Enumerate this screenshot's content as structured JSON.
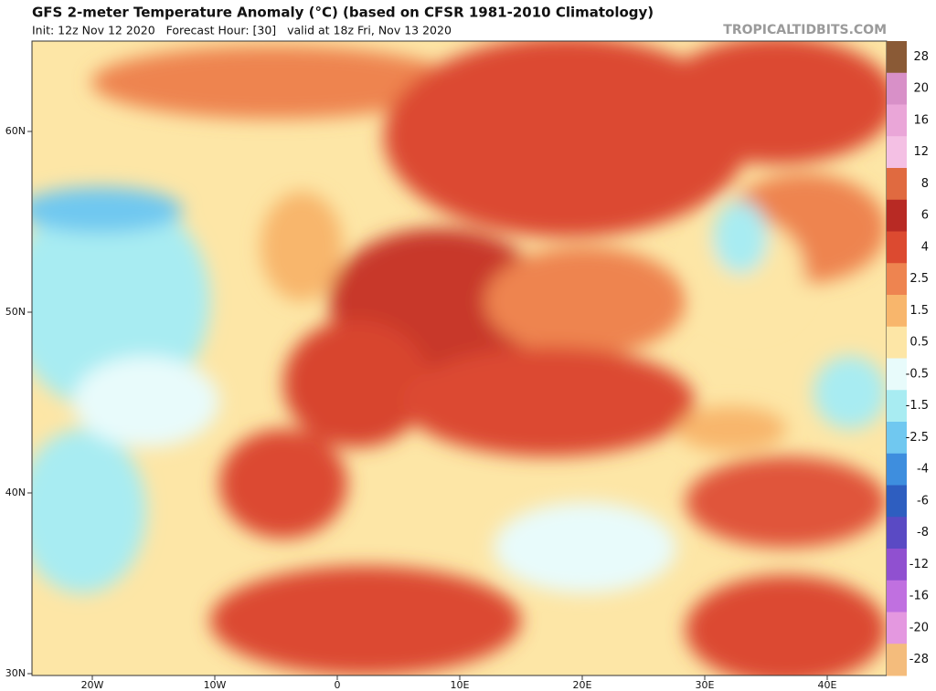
{
  "header": {
    "title": "GFS 2-meter Temperature Anomaly (°C) (based on CFSR 1981-2010 Climatology)",
    "subtitle": "Init: 12z Nov 12 2020   Forecast Hour: [30]   valid at 18z Fri, Nov 13 2020",
    "watermark": "TROPICALTIDBITS.COM"
  },
  "map": {
    "lat_labels": [
      "60N",
      "50N",
      "40N",
      "30N"
    ],
    "lon_labels": [
      "20W",
      "10W",
      "0",
      "10E",
      "20E",
      "30E",
      "40E"
    ]
  },
  "colorbar": {
    "levels": [
      {
        "label": 28,
        "color": "#8a5a36"
      },
      {
        "label": 20,
        "color": "#d890c8"
      },
      {
        "label": 16,
        "color": "#eaa6d8"
      },
      {
        "label": 12,
        "color": "#f4c0e4"
      },
      {
        "label": 8,
        "color": "#e06a40"
      },
      {
        "label": 6,
        "color": "#b82a24"
      },
      {
        "label": 4,
        "color": "#dc4a30"
      },
      {
        "label": 2.5,
        "color": "#ee8450"
      },
      {
        "label": 1.5,
        "color": "#f8b66c"
      },
      {
        "label": 0.5,
        "color": "#fde6a6"
      },
      {
        "label": -0.5,
        "color": "#e8fbfb"
      },
      {
        "label": -1.5,
        "color": "#a8ecf2"
      },
      {
        "label": -2.5,
        "color": "#70c8f0"
      },
      {
        "label": -4,
        "color": "#3e8ede"
      },
      {
        "label": -6,
        "color": "#2e5ec0"
      },
      {
        "label": -8,
        "color": "#5a4ac4"
      },
      {
        "label": -12,
        "color": "#9050d0"
      },
      {
        "label": -16,
        "color": "#c070e0"
      },
      {
        "label": -20,
        "color": "#e498e0"
      },
      {
        "label": -28,
        "color": "#f4bc7c"
      }
    ]
  }
}
